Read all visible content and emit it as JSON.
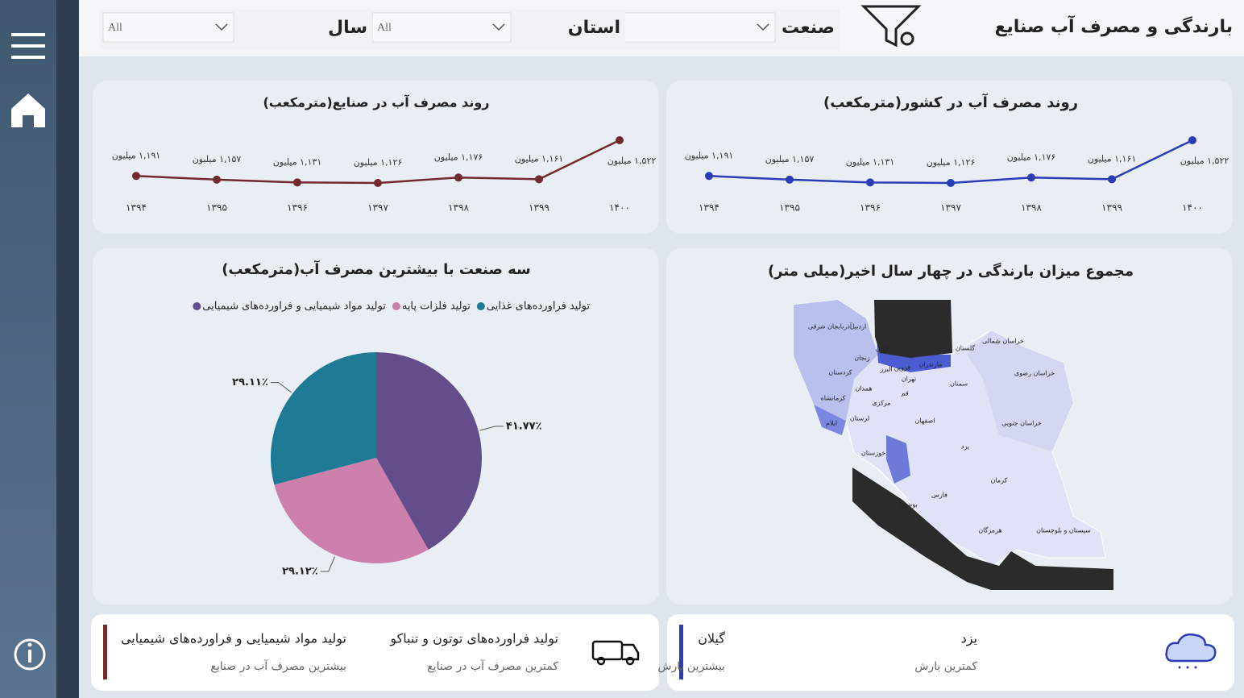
{
  "header": {
    "title": "بارندگی و مصرف آب صنایع"
  },
  "filters": [
    {
      "label": "صنعت",
      "value": "All"
    },
    {
      "label": "استان",
      "value": "All"
    },
    {
      "label": "سال",
      "value": "All"
    }
  ],
  "chart_data": [
    {
      "type": "line",
      "title": "روند مصرف آب در کشور(مترمکعب)",
      "color": "#2a3db5",
      "categories": [
        "۱۳۹۴",
        "۱۳۹۵",
        "۱۳۹۶",
        "۱۳۹۷",
        "۱۳۹۸",
        "۱۳۹۹",
        "۱۴۰۰"
      ],
      "values": [
        1191,
        1157,
        1131,
        1126,
        1176,
        1161,
        1522
      ],
      "value_labels": [
        "۱,۱۹۱ میلیون",
        "۱,۱۵۷ میلیون",
        "۱,۱۳۱ میلیون",
        "۱,۱۲۶ میلیون",
        "۱,۱۷۶ میلیون",
        "۱,۱۶۱ میلیون",
        "۱,۵۲۲ میلیون"
      ]
    },
    {
      "type": "line",
      "title": "روند مصرف آب در صنایع(مترمکعب)",
      "color": "#722a2e",
      "categories": [
        "۱۳۹۴",
        "۱۳۹۵",
        "۱۳۹۶",
        "۱۳۹۷",
        "۱۳۹۸",
        "۱۳۹۹",
        "۱۴۰۰"
      ],
      "values": [
        1191,
        1157,
        1131,
        1126,
        1176,
        1161,
        1522
      ],
      "value_labels": [
        "۱,۱۹۱ میلیون",
        "۱,۱۵۷ میلیون",
        "۱,۱۳۱ میلیون",
        "۱,۱۲۶ میلیون",
        "۱,۱۷۶ میلیون",
        "۱,۱۶۱ میلیون",
        "۱,۵۲۲ میلیون"
      ]
    },
    {
      "type": "pie",
      "title": "سه صنعت با بیشترین مصرف آب(مترمکعب)",
      "categories": [
        "تولید فراورده‌های غذایی",
        "تولید فلزات پایه",
        "تولید مواد شیمیایی و فراورده‌های شیمیایی"
      ],
      "colors": [
        "#1f7a96",
        "#cc80ab",
        "#634d8a"
      ],
      "values": [
        29.11,
        29.12,
        41.77
      ],
      "value_labels": [
        "۲۹.۱۱٪",
        "۲۹.۱۲٪",
        "۴۱.۷۷٪"
      ]
    }
  ],
  "map": {
    "title": "مجموع میزان بارندگی در چهار سال اخیر(میلی متر)",
    "labels": [
      "آذربایجان شرقی",
      "اردبیل",
      "گیلان",
      "زنجان",
      "گلستان",
      "خراسان شمالی",
      "مازندران",
      "البرز",
      "قزوین",
      "تهران",
      "کردستان",
      "همدان",
      "قم",
      "سمنان",
      "خراسان رضوی",
      "کرمانشاه",
      "مرکزی",
      "لرستان",
      "ایلام",
      "اصفهان",
      "خراسان جنوبی",
      "یزد",
      "خوزستان",
      "کرمان",
      "فارس",
      "بوشهر",
      "هرمزگان",
      "سیستان و بلوچستان"
    ]
  },
  "kpis": [
    {
      "title": "یزد",
      "subtitle": "کمترین بارش"
    },
    {
      "title": "گیلان",
      "subtitle": "بیشترین بارش"
    },
    {
      "title": "تولید فراورده‌های توتون و تنباکو",
      "subtitle": "کمترین مصرف آب در صنایع"
    },
    {
      "title": "تولید مواد شیمیایی و فراورده‌های شیمیایی",
      "subtitle": "بیشترین مصرف آب در صنایع"
    }
  ]
}
